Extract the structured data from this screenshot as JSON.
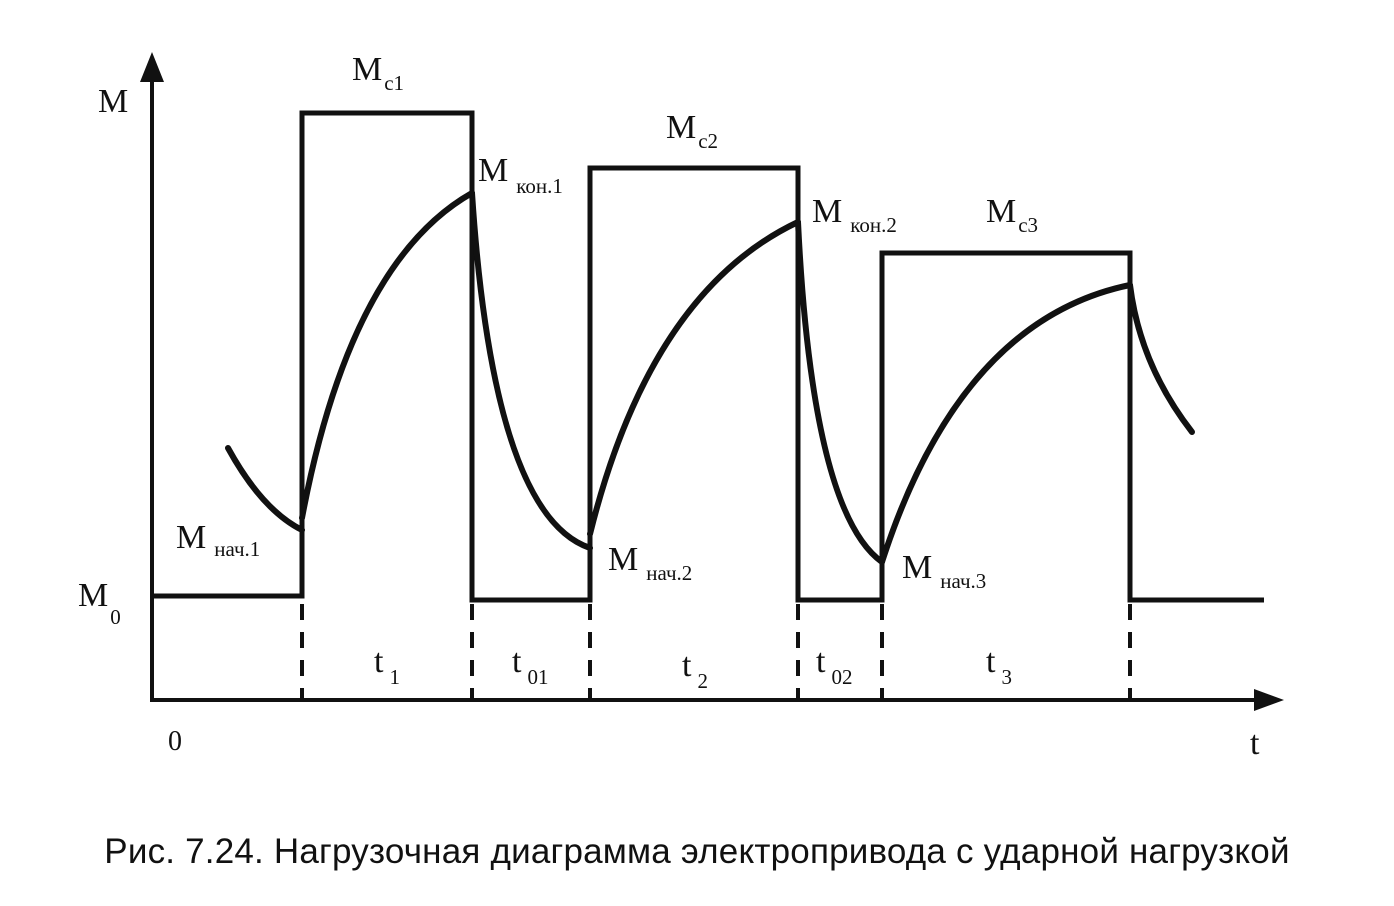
{
  "diagram": {
    "y_axis_label": "M",
    "x_axis_label": "t",
    "origin_label": "0",
    "baseline_label": {
      "main": "M",
      "sub": "0"
    },
    "load_labels": [
      {
        "main": "M",
        "sub": "c1"
      },
      {
        "main": "M",
        "sub": "c2"
      },
      {
        "main": "M",
        "sub": "c3"
      }
    ],
    "start_labels": [
      {
        "main": "M",
        "sub": "нач.1"
      },
      {
        "main": "M",
        "sub": "нач.2"
      },
      {
        "main": "M",
        "sub": "нач.3"
      }
    ],
    "end_labels": [
      {
        "main": "M",
        "sub": "кон.1"
      },
      {
        "main": "M",
        "sub": "кон.2"
      }
    ],
    "interval_labels": [
      {
        "main": "t",
        "sub": "1"
      },
      {
        "main": "t",
        "sub": "01"
      },
      {
        "main": "t",
        "sub": "2"
      },
      {
        "main": "t",
        "sub": "02"
      },
      {
        "main": "t",
        "sub": "3"
      }
    ]
  },
  "caption": "Рис. 7.24. Нагрузочная диаграмма электропривода с ударной нагрузкой"
}
